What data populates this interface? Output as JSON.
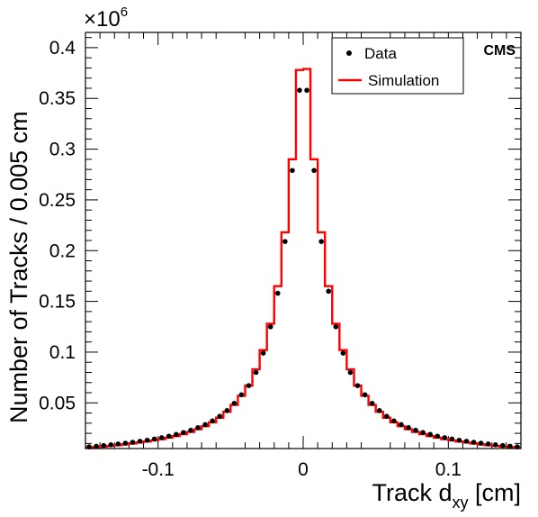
{
  "chart_data": {
    "type": "line",
    "xlabel": "Track d",
    "xlabel_sub": "xy",
    "xlabel_unit": " [cm]",
    "ylabel": "Number of Tracks / 0.005 cm",
    "exponent_text": "×10",
    "exponent_power": "6",
    "experiment_label": "CMS",
    "xlim": [
      -0.15,
      0.15
    ],
    "ylim": [
      0.005,
      0.415
    ],
    "x_ticks": [
      -0.1,
      0,
      0.1
    ],
    "x_tick_labels": [
      "-0.1",
      "0",
      "0.1"
    ],
    "y_ticks": [
      0.05,
      0.1,
      0.15,
      0.2,
      0.25,
      0.3,
      0.35,
      0.4
    ],
    "y_tick_labels": [
      "0.05",
      "0.1",
      "0.15",
      "0.2",
      "0.25",
      "0.3",
      "0.35",
      "0.4"
    ],
    "legend_position": "top-right",
    "series": [
      {
        "name": "Data",
        "style": "points",
        "color": "#000000",
        "x": [
          -0.1475,
          -0.1425,
          -0.1375,
          -0.1325,
          -0.1275,
          -0.1225,
          -0.1175,
          -0.1125,
          -0.1075,
          -0.1025,
          -0.0975,
          -0.0925,
          -0.0875,
          -0.0825,
          -0.0775,
          -0.0725,
          -0.0675,
          -0.0625,
          -0.0575,
          -0.0525,
          -0.0475,
          -0.0425,
          -0.0375,
          -0.0325,
          -0.0275,
          -0.0225,
          -0.0175,
          -0.0125,
          -0.0075,
          -0.0025,
          0.0025,
          0.0075,
          0.0125,
          0.0175,
          0.0225,
          0.0275,
          0.0325,
          0.0375,
          0.0425,
          0.0475,
          0.0525,
          0.0575,
          0.0625,
          0.0675,
          0.0725,
          0.0775,
          0.0825,
          0.0875,
          0.0925,
          0.0975,
          0.1025,
          0.1075,
          0.1125,
          0.1175,
          0.1225,
          0.1275,
          0.1325,
          0.1375,
          0.1425,
          0.1475
        ],
        "y": [
          0.0067,
          0.0073,
          0.008,
          0.0087,
          0.0095,
          0.0103,
          0.0112,
          0.0122,
          0.0132,
          0.0144,
          0.0157,
          0.0172,
          0.0189,
          0.0208,
          0.023,
          0.0256,
          0.0286,
          0.0323,
          0.0368,
          0.0424,
          0.0496,
          0.058,
          0.067,
          0.08,
          0.099,
          0.125,
          0.158,
          0.209,
          0.279,
          0.358,
          0.358,
          0.279,
          0.209,
          0.16,
          0.125,
          0.099,
          0.08,
          0.067,
          0.058,
          0.0496,
          0.0424,
          0.0368,
          0.0323,
          0.0286,
          0.0256,
          0.023,
          0.0208,
          0.0189,
          0.0172,
          0.0157,
          0.0144,
          0.0132,
          0.0122,
          0.0112,
          0.0103,
          0.0095,
          0.0087,
          0.008,
          0.0073,
          0.0067
        ]
      },
      {
        "name": "Simulation",
        "style": "step",
        "color": "#ff0000",
        "x": [
          -0.1475,
          -0.1425,
          -0.1375,
          -0.1325,
          -0.1275,
          -0.1225,
          -0.1175,
          -0.1125,
          -0.1075,
          -0.1025,
          -0.0975,
          -0.0925,
          -0.0875,
          -0.0825,
          -0.0775,
          -0.0725,
          -0.0675,
          -0.0625,
          -0.0575,
          -0.0525,
          -0.0475,
          -0.0425,
          -0.0375,
          -0.0325,
          -0.0275,
          -0.0225,
          -0.0175,
          -0.0125,
          -0.0075,
          -0.0025,
          0.0025,
          0.0075,
          0.0125,
          0.0175,
          0.0225,
          0.0275,
          0.0325,
          0.0375,
          0.0425,
          0.0475,
          0.0525,
          0.0575,
          0.0625,
          0.0675,
          0.0725,
          0.0775,
          0.0825,
          0.0875,
          0.0925,
          0.0975,
          0.1025,
          0.1075,
          0.1125,
          0.1175,
          0.1225,
          0.1275,
          0.1325,
          0.1375,
          0.1425,
          0.1475
        ],
        "y": [
          0.0058,
          0.0064,
          0.007,
          0.0076,
          0.0083,
          0.0091,
          0.01,
          0.0109,
          0.0119,
          0.013,
          0.0143,
          0.0157,
          0.0173,
          0.0192,
          0.0214,
          0.024,
          0.027,
          0.0308,
          0.0354,
          0.0412,
          0.048,
          0.057,
          0.067,
          0.083,
          0.102,
          0.128,
          0.165,
          0.218,
          0.29,
          0.378,
          0.379,
          0.29,
          0.218,
          0.165,
          0.128,
          0.102,
          0.083,
          0.067,
          0.057,
          0.048,
          0.0412,
          0.0354,
          0.0308,
          0.027,
          0.024,
          0.0214,
          0.0192,
          0.0173,
          0.0157,
          0.0143,
          0.013,
          0.0119,
          0.0109,
          0.01,
          0.0091,
          0.0083,
          0.0076,
          0.007,
          0.0064,
          0.0058
        ]
      }
    ]
  }
}
